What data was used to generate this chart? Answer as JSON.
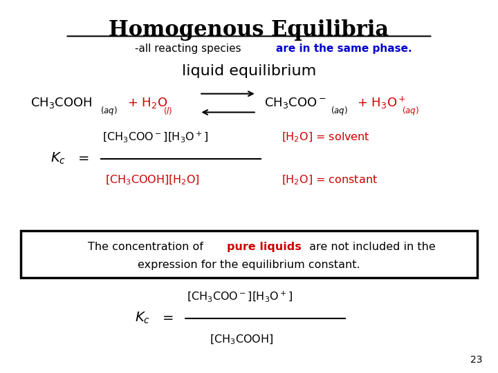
{
  "title": "Homogenous Equilibria",
  "subtitle_normal": "-all reacting species ",
  "subtitle_bold_blue": "are in the same phase.",
  "liquid_eq": "liquid equilibrium",
  "bg_color": "#ffffff",
  "text_color": "#000000",
  "red_color": "#cc0000",
  "blue_color": "#0000cc",
  "page_number": "23",
  "figsize": [
    7.2,
    5.4
  ],
  "dpi": 100
}
